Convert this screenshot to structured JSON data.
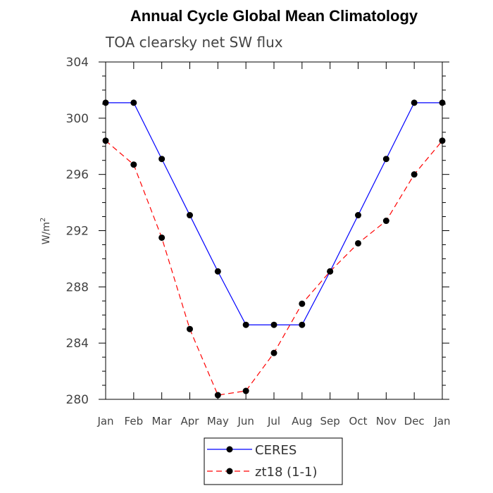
{
  "chart_data": {
    "type": "line",
    "title": "Annual Cycle Global Mean Climatology",
    "subtitle": "TOA clearsky net SW flux",
    "ylabel": "W/m",
    "ylabel_superscript": "2",
    "xlabel": "",
    "categories": [
      "Jan",
      "Feb",
      "Mar",
      "Apr",
      "May",
      "Jun",
      "Jul",
      "Aug",
      "Sep",
      "Oct",
      "Nov",
      "Dec",
      "Jan"
    ],
    "ylim": [
      280,
      304
    ],
    "yticks": [
      "280",
      "284",
      "288",
      "292",
      "296",
      "300",
      "304"
    ],
    "grid": false,
    "legend_position": "bottom-center",
    "series": [
      {
        "name": "CERES",
        "color": "#0000ff",
        "dash": "solid",
        "values": [
          301.1,
          301.1,
          297.1,
          293.1,
          289.1,
          285.3,
          285.3,
          285.3,
          289.1,
          293.1,
          297.1,
          301.1,
          301.1
        ]
      },
      {
        "name": "zt18 (1-1)",
        "color": "#ff0000",
        "dash": "dashed",
        "values": [
          298.4,
          296.7,
          291.5,
          285.0,
          280.3,
          280.6,
          283.3,
          286.8,
          289.1,
          291.1,
          292.7,
          296.0,
          298.4
        ]
      }
    ]
  }
}
